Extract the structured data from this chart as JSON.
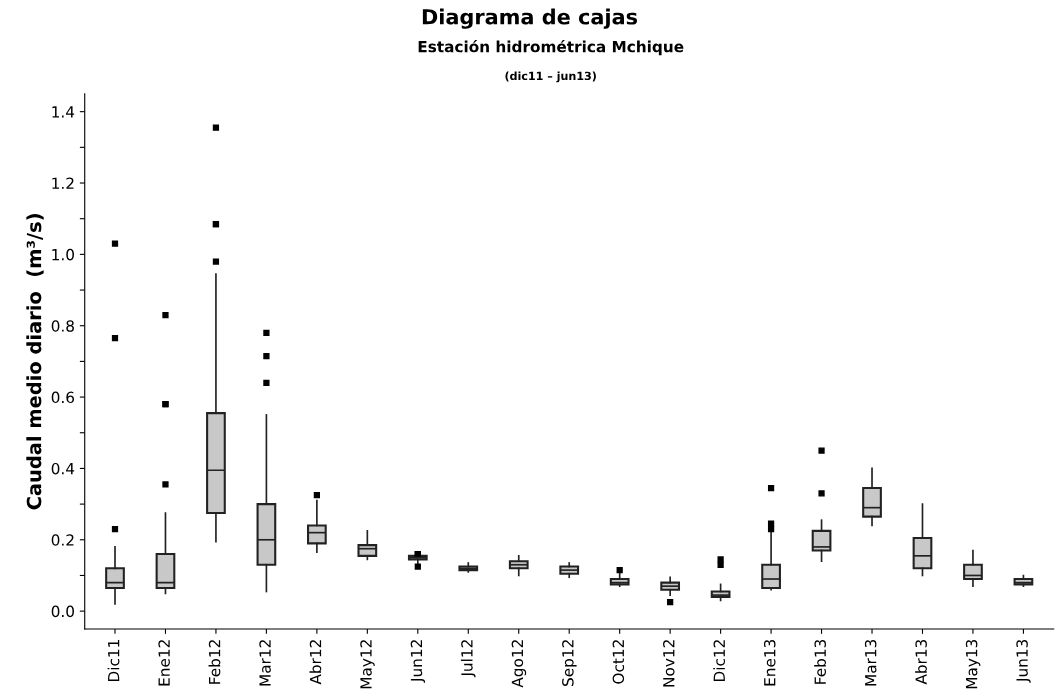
{
  "chart_data": {
    "type": "box",
    "title": "Diagrama de cajas",
    "subtitle": "Estación hidrométrica Mchique",
    "annotations": [
      "(dic11 – jun13)"
    ],
    "ylabel": "Caudal medio diario  (m³/s)",
    "categories": [
      "Dic11",
      "Ene12",
      "Feb12",
      "Mar12",
      "Abr12",
      "May12",
      "Jun12",
      "Jul12",
      "Ago12",
      "Sep12",
      "Oct12",
      "Nov12",
      "Dic12",
      "Ene13",
      "Feb13",
      "Mar13",
      "Abr13",
      "May13",
      "Jun13"
    ],
    "color": "#c8c8c8",
    "boxes": [
      {
        "low": 0.02,
        "q1": 0.065,
        "median": 0.08,
        "q3": 0.12,
        "high": 0.18,
        "outliers": [
          0.23,
          0.765,
          1.03
        ]
      },
      {
        "low": 0.05,
        "q1": 0.065,
        "median": 0.08,
        "q3": 0.16,
        "high": 0.275,
        "outliers": [
          0.355,
          0.58,
          0.58,
          0.83
        ]
      },
      {
        "low": 0.195,
        "q1": 0.275,
        "median": 0.395,
        "q3": 0.555,
        "high": 0.945,
        "outliers": [
          0.98,
          1.085,
          1.085,
          1.355
        ]
      },
      {
        "low": 0.055,
        "q1": 0.13,
        "median": 0.2,
        "q3": 0.3,
        "high": 0.55,
        "outliers": [
          0.64,
          0.715,
          0.78
        ]
      },
      {
        "low": 0.165,
        "q1": 0.19,
        "median": 0.22,
        "q3": 0.24,
        "high": 0.31,
        "outliers": [
          0.325
        ]
      },
      {
        "low": 0.145,
        "q1": 0.155,
        "median": 0.175,
        "q3": 0.185,
        "high": 0.225
      },
      {
        "low": 0.13,
        "q1": 0.145,
        "median": 0.15,
        "q3": 0.155,
        "high": 0.16,
        "outliers": [
          0.125,
          0.16,
          0.16
        ]
      },
      {
        "low": 0.11,
        "q1": 0.115,
        "median": 0.12,
        "q3": 0.125,
        "high": 0.135
      },
      {
        "low": 0.1,
        "q1": 0.12,
        "median": 0.13,
        "q3": 0.14,
        "high": 0.155
      },
      {
        "low": 0.095,
        "q1": 0.105,
        "median": 0.115,
        "q3": 0.125,
        "high": 0.135
      },
      {
        "low": 0.07,
        "q1": 0.075,
        "median": 0.08,
        "q3": 0.09,
        "high": 0.105,
        "outliers": [
          0.115
        ]
      },
      {
        "low": 0.045,
        "q1": 0.06,
        "median": 0.07,
        "q3": 0.08,
        "high": 0.095,
        "outliers": [
          0.025
        ]
      },
      {
        "low": 0.03,
        "q1": 0.04,
        "median": 0.045,
        "q3": 0.055,
        "high": 0.075,
        "outliers": [
          0.13,
          0.145
        ]
      },
      {
        "low": 0.06,
        "q1": 0.065,
        "median": 0.09,
        "q3": 0.13,
        "high": 0.22,
        "outliers": [
          0.23,
          0.245,
          0.345
        ]
      },
      {
        "low": 0.14,
        "q1": 0.17,
        "median": 0.18,
        "q3": 0.225,
        "high": 0.255,
        "outliers": [
          0.33,
          0.45
        ]
      },
      {
        "low": 0.24,
        "q1": 0.265,
        "median": 0.29,
        "q3": 0.345,
        "high": 0.4
      },
      {
        "low": 0.1,
        "q1": 0.12,
        "median": 0.155,
        "q3": 0.205,
        "high": 0.3
      },
      {
        "low": 0.07,
        "q1": 0.09,
        "median": 0.1,
        "q3": 0.13,
        "high": 0.17
      },
      {
        "low": 0.07,
        "q1": 0.075,
        "median": 0.08,
        "q3": 0.09,
        "high": 0.1
      }
    ],
    "ylim": [
      -0.05,
      1.45
    ],
    "yticks": [
      "0.0",
      {
        "value": 0.1,
        "label": null
      },
      0.2,
      {
        "value": 0.3,
        "label": null
      },
      0.4,
      {
        "value": 0.5,
        "label": null
      },
      0.6,
      {
        "value": 0.7,
        "label": null
      },
      0.8,
      {
        "value": 0.9,
        "label": null
      },
      "1.0",
      {
        "value": 1.1,
        "label": null
      },
      1.2,
      {
        "value": 1.3,
        "label": null
      },
      1.4
    ],
    "grid": false
  }
}
